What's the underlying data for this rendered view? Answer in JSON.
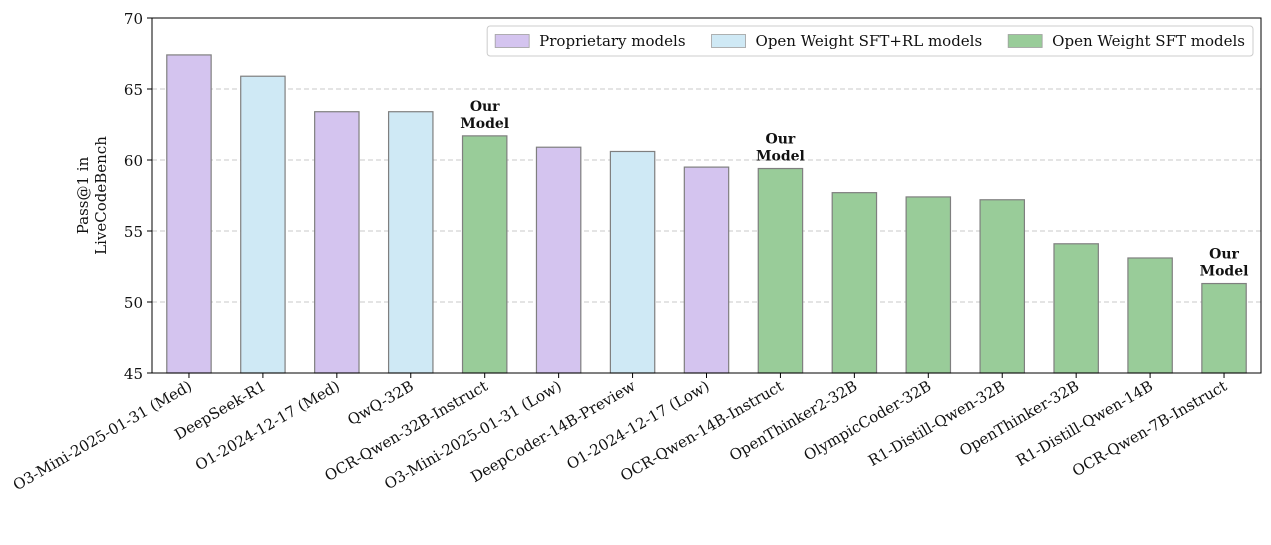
{
  "chart_data": {
    "type": "bar",
    "ylabel": "Pass@1 in\nLiveCodeBench",
    "ylim": [
      45,
      70
    ],
    "yticks": [
      45,
      50,
      55,
      60,
      65,
      70
    ],
    "grid": true,
    "legend_position": "top-right",
    "colors": {
      "proprietary": "#d4c4ef",
      "sft_rl": "#cfe9f5",
      "sft": "#99cc99"
    },
    "legend": [
      {
        "key": "proprietary",
        "label": "Proprietary models"
      },
      {
        "key": "sft_rl",
        "label": "Open Weight SFT+RL models"
      },
      {
        "key": "sft",
        "label": "Open Weight SFT models"
      }
    ],
    "bars": [
      {
        "label": "O3-Mini-2025-01-31 (Med)",
        "value": 67.4,
        "group": "proprietary"
      },
      {
        "label": "DeepSeek-R1",
        "value": 65.9,
        "group": "sft_rl"
      },
      {
        "label": "O1-2024-12-17 (Med)",
        "value": 63.4,
        "group": "proprietary"
      },
      {
        "label": "QwQ-32B",
        "value": 63.4,
        "group": "sft_rl"
      },
      {
        "label": "OCR-Qwen-32B-Instruct",
        "value": 61.7,
        "group": "sft",
        "annotation": [
          "Our",
          "Model"
        ]
      },
      {
        "label": "O3-Mini-2025-01-31 (Low)",
        "value": 60.9,
        "group": "proprietary"
      },
      {
        "label": "DeepCoder-14B-Preview",
        "value": 60.6,
        "group": "sft_rl"
      },
      {
        "label": "O1-2024-12-17 (Low)",
        "value": 59.5,
        "group": "proprietary"
      },
      {
        "label": "OCR-Qwen-14B-Instruct",
        "value": 59.4,
        "group": "sft",
        "annotation": [
          "Our",
          "Model"
        ]
      },
      {
        "label": "OpenThinker2-32B",
        "value": 57.7,
        "group": "sft"
      },
      {
        "label": "OlympicCoder-32B",
        "value": 57.4,
        "group": "sft"
      },
      {
        "label": "R1-Distill-Qwen-32B",
        "value": 57.2,
        "group": "sft"
      },
      {
        "label": "OpenThinker-32B",
        "value": 54.1,
        "group": "sft"
      },
      {
        "label": "R1-Distill-Qwen-14B",
        "value": 53.1,
        "group": "sft"
      },
      {
        "label": "OCR-Qwen-7B-Instruct",
        "value": 51.3,
        "group": "sft",
        "annotation": [
          "Our",
          "Model"
        ]
      }
    ]
  }
}
